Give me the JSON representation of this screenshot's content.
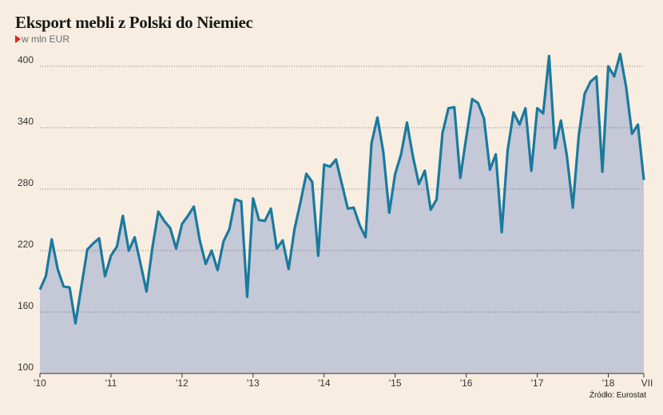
{
  "title": "Eksport mebli z Polski do Niemiec",
  "subtitle": "w mln EUR",
  "source": "Źródło: Eurostat",
  "colors": {
    "line": "#1a7a9e",
    "area": "#c5c8d6",
    "background": "#f8ede1",
    "marker": "#d9261c"
  },
  "chart_data": {
    "type": "area",
    "ylim": [
      100,
      400
    ],
    "yticks": [
      100,
      160,
      220,
      280,
      340,
      400
    ],
    "grid": "horizontal-dotted",
    "xtick_labels": [
      "'10",
      "'11",
      "'12",
      "'13",
      "'14",
      "'15",
      "'16",
      "'17",
      "'18",
      "VII"
    ],
    "series": [
      {
        "values": [
          182,
          195,
          231,
          202,
          185,
          184,
          149,
          185,
          221,
          227,
          232,
          195,
          215,
          224,
          254,
          220,
          233,
          207,
          180,
          223,
          258,
          249,
          242,
          222,
          246,
          254,
          263,
          230,
          207,
          220,
          201,
          229,
          241,
          270,
          268,
          175,
          271,
          250,
          249,
          261,
          222,
          230,
          202,
          241,
          267,
          295,
          287,
          215,
          304,
          302,
          309,
          285,
          261,
          262,
          245,
          233,
          325,
          350,
          316,
          257,
          295,
          314,
          345,
          312,
          285,
          298,
          260,
          270,
          335,
          359,
          360,
          291,
          330,
          368,
          364,
          349,
          299,
          314,
          238,
          318,
          355,
          343,
          359,
          298,
          359,
          354,
          410,
          320,
          347,
          313,
          262,
          332,
          373,
          385,
          390,
          297,
          400,
          390,
          412,
          380,
          334,
          343,
          289
        ]
      }
    ]
  }
}
